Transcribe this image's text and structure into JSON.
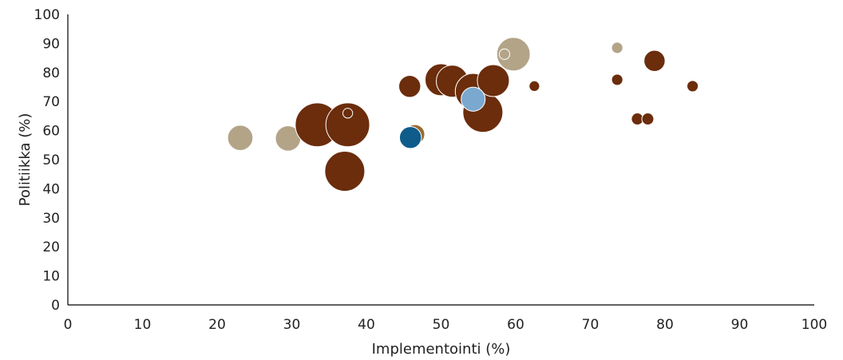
{
  "chart_data": {
    "type": "scatter",
    "title": "",
    "xlabel": "Implementointi (%)",
    "ylabel": "Politiikka (%)",
    "xlim": [
      0,
      100
    ],
    "ylim": [
      0,
      100
    ],
    "xticks": [
      0,
      10,
      20,
      30,
      40,
      50,
      60,
      70,
      80,
      90,
      100
    ],
    "yticks": [
      0,
      10,
      20,
      30,
      40,
      50,
      60,
      70,
      80,
      90,
      100
    ],
    "grid": false,
    "legend": "none",
    "colors": {
      "dark_brown": "#6b2d0c",
      "beige": "#b3a488",
      "tan": "#9a6a2e",
      "light_blue": "#7aa8cf",
      "dark_blue": "#0f5b8a"
    },
    "points": [
      {
        "x": 23.1,
        "y": 57.5,
        "size": 2,
        "color": "beige"
      },
      {
        "x": 29.5,
        "y": 57.3,
        "size": 2,
        "color": "beige"
      },
      {
        "x": 33.4,
        "y": 62.0,
        "size": 6,
        "color": "dark_brown"
      },
      {
        "x": 37.5,
        "y": 62.0,
        "size": 6,
        "color": "dark_brown"
      },
      {
        "x": 37.5,
        "y": 66.0,
        "size": 0.3,
        "color": "dark_brown"
      },
      {
        "x": 37.1,
        "y": 46.0,
        "size": 5,
        "color": "dark_brown"
      },
      {
        "x": 46.5,
        "y": 58.7,
        "size": 1.2,
        "color": "tan"
      },
      {
        "x": 45.9,
        "y": 57.6,
        "size": 1.5,
        "color": "dark_blue"
      },
      {
        "x": 45.8,
        "y": 75.2,
        "size": 1.5,
        "color": "dark_brown"
      },
      {
        "x": 50.0,
        "y": 77.5,
        "size": 3.2,
        "color": "dark_brown"
      },
      {
        "x": 51.5,
        "y": 77.0,
        "size": 3.2,
        "color": "dark_brown"
      },
      {
        "x": 54.3,
        "y": 73.5,
        "size": 4,
        "color": "dark_brown"
      },
      {
        "x": 55.6,
        "y": 66.3,
        "size": 5,
        "color": "dark_brown"
      },
      {
        "x": 57.0,
        "y": 77.2,
        "size": 3.2,
        "color": "dark_brown"
      },
      {
        "x": 54.3,
        "y": 70.8,
        "size": 1.8,
        "color": "light_blue"
      },
      {
        "x": 59.7,
        "y": 86.3,
        "size": 3.5,
        "color": "beige"
      },
      {
        "x": 58.5,
        "y": 86.3,
        "size": 0.35,
        "color": "beige"
      },
      {
        "x": 62.5,
        "y": 75.3,
        "size": 0.35,
        "color": "dark_brown"
      },
      {
        "x": 73.6,
        "y": 88.5,
        "size": 0.4,
        "color": "beige"
      },
      {
        "x": 73.6,
        "y": 77.5,
        "size": 0.4,
        "color": "dark_brown"
      },
      {
        "x": 78.6,
        "y": 84.0,
        "size": 1.4,
        "color": "dark_brown"
      },
      {
        "x": 76.3,
        "y": 64.0,
        "size": 0.45,
        "color": "dark_brown"
      },
      {
        "x": 77.7,
        "y": 64.0,
        "size": 0.45,
        "color": "dark_brown"
      },
      {
        "x": 83.7,
        "y": 75.3,
        "size": 0.4,
        "color": "dark_brown"
      }
    ]
  }
}
